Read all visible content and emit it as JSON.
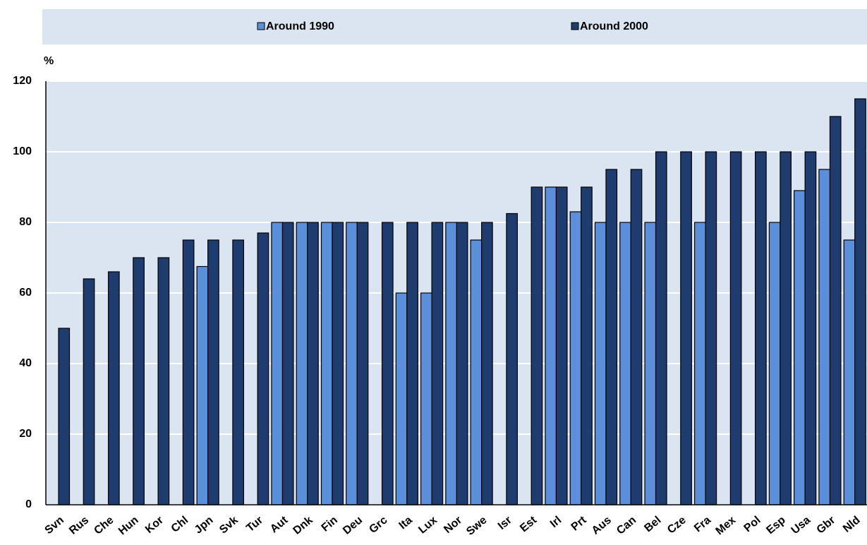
{
  "chart_data": {
    "type": "bar",
    "y_label": "%",
    "legend": "top",
    "grid": true,
    "categories": [
      "Svn",
      "Rus",
      "Che",
      "Hun",
      "Kor",
      "Chl",
      "Jpn",
      "Svk",
      "Tur",
      "Aut",
      "Dnk",
      "Fin",
      "Deu",
      "Grc",
      "Ita",
      "Lux",
      "Nor",
      "Swe",
      "Isr",
      "Est",
      "Irl",
      "Prt",
      "Aus",
      "Can",
      "Bel",
      "Cze",
      "Fra",
      "Mex",
      "Pol",
      "Esp",
      "Usa",
      "Gbr",
      "Nld"
    ],
    "series": [
      {
        "name": "Around 1990",
        "color": "#5b8fd9",
        "values": [
          null,
          null,
          null,
          null,
          null,
          null,
          67.5,
          null,
          null,
          80,
          80,
          80,
          80,
          null,
          60,
          60,
          80,
          75,
          null,
          null,
          90,
          83,
          80,
          80,
          80,
          null,
          80,
          null,
          null,
          80,
          89,
          95,
          75
        ]
      },
      {
        "name": "Around 2000",
        "color": "#1f3c6e",
        "values": [
          50,
          64,
          66,
          70,
          70,
          75,
          75,
          75,
          77,
          80,
          80,
          80,
          80,
          80,
          80,
          80,
          80,
          80,
          82.5,
          90,
          90,
          90,
          95,
          95,
          100,
          100,
          100,
          100,
          100,
          100,
          100,
          110,
          115
        ]
      }
    ],
    "ylim": [
      0,
      120
    ],
    "yticks": [
      0,
      20,
      40,
      60,
      80,
      100,
      120
    ]
  }
}
